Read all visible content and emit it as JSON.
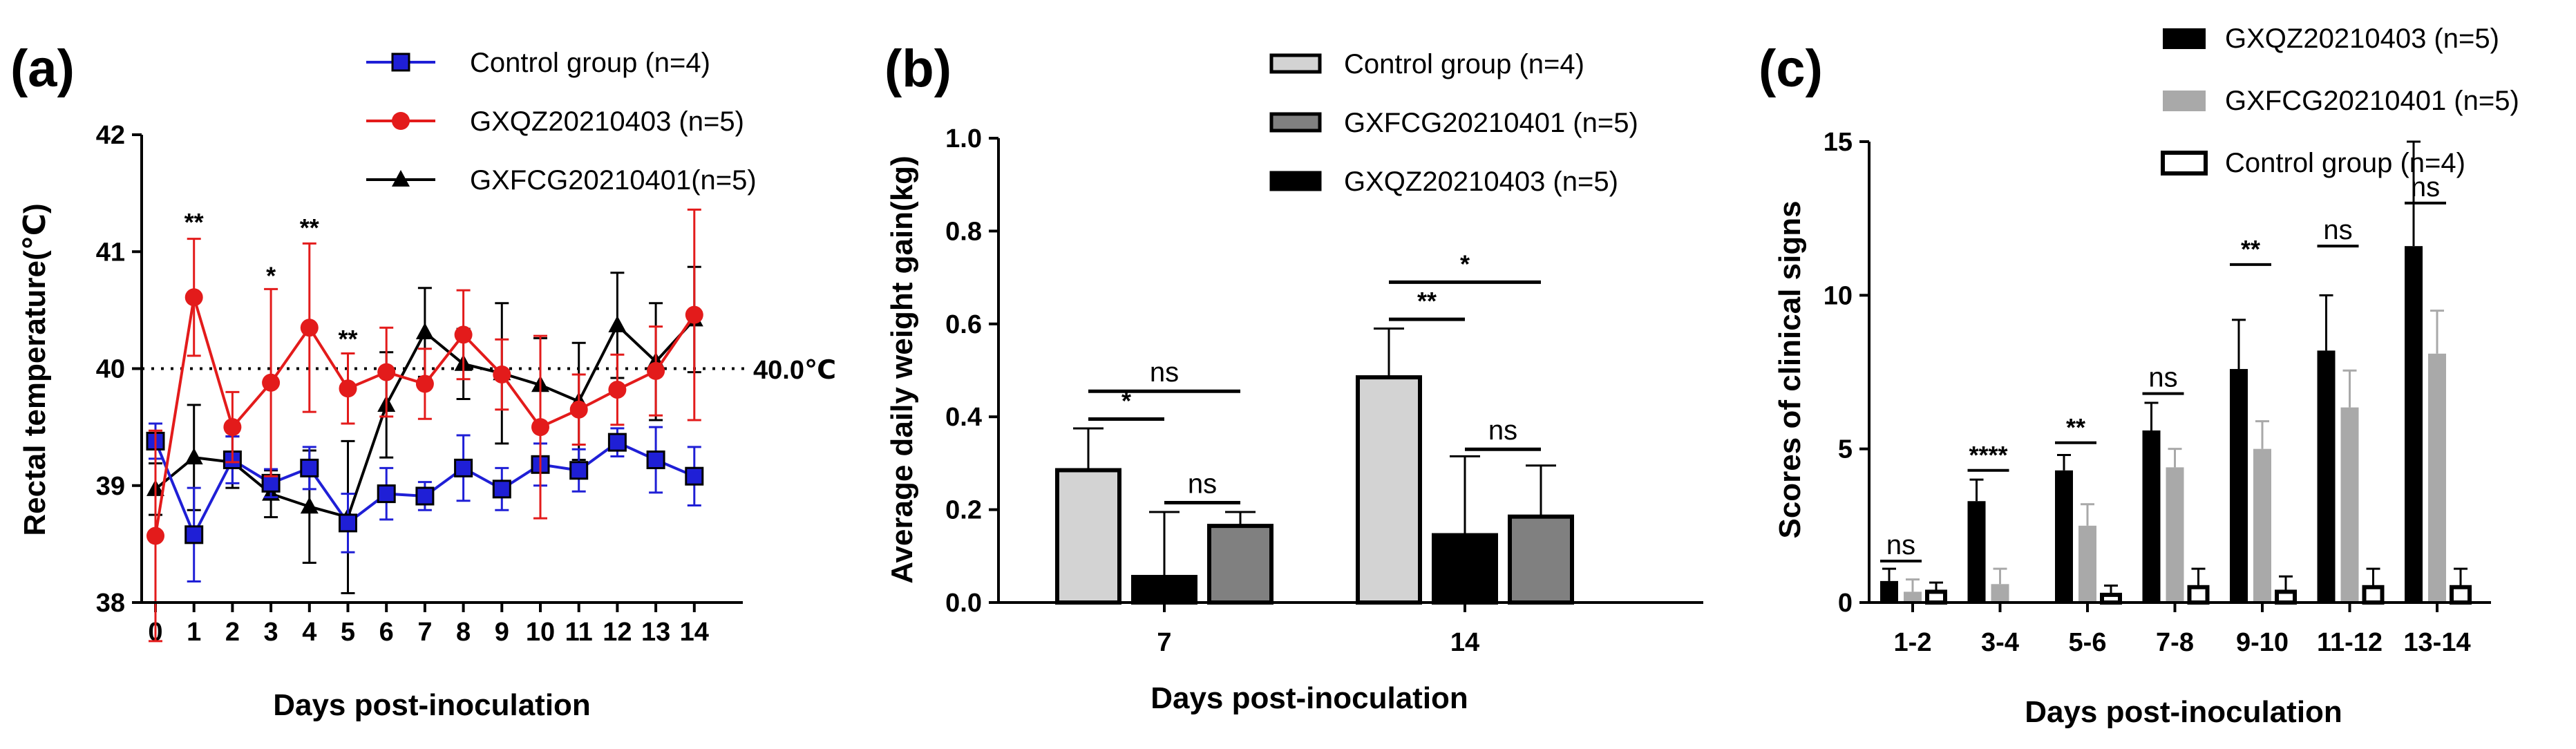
{
  "chart_data": [
    {
      "panel": "(a)",
      "type": "line",
      "xlabel": "Days post-inoculation",
      "ylabel": "Rectal temperature(℃)",
      "x": [
        0,
        1,
        2,
        3,
        4,
        5,
        6,
        7,
        8,
        9,
        10,
        11,
        12,
        13,
        14
      ],
      "ylim": [
        38,
        42
      ],
      "yticks": [
        38,
        39,
        40,
        41,
        42
      ],
      "reference_line": {
        "y": 40.0,
        "label": "40.0℃"
      },
      "series": [
        {
          "name": "Control group (n=4)",
          "color": "#1f1fd6",
          "marker": "square",
          "values": [
            39.38,
            38.58,
            39.22,
            39.02,
            39.15,
            38.68,
            38.93,
            38.91,
            39.15,
            38.97,
            39.18,
            39.13,
            39.37,
            39.22,
            39.08
          ],
          "errors": [
            0.15,
            0.4,
            0.2,
            0.12,
            0.18,
            0.25,
            0.22,
            0.12,
            0.28,
            0.18,
            0.18,
            0.18,
            0.12,
            0.28,
            0.25
          ]
        },
        {
          "name": "GXQZ20210403 (n=5)",
          "color": "#e31b1b",
          "marker": "circle",
          "values": [
            38.57,
            40.61,
            39.5,
            39.88,
            40.35,
            39.83,
            39.97,
            39.87,
            40.29,
            39.95,
            39.5,
            39.65,
            39.82,
            39.98,
            40.46
          ],
          "errors": [
            0.9,
            0.5,
            0.3,
            0.8,
            0.72,
            0.3,
            0.38,
            0.3,
            0.38,
            0.3,
            0.78,
            0.3,
            0.3,
            0.38,
            0.9
          ]
        },
        {
          "name": "GXFCG20210401(n=5)",
          "color": "#000000",
          "marker": "triangle",
          "values": [
            38.97,
            39.24,
            39.2,
            38.93,
            38.82,
            38.73,
            39.69,
            40.31,
            40.04,
            39.96,
            39.86,
            39.72,
            40.37,
            40.06,
            40.42
          ],
          "errors": [
            0.22,
            0.45,
            0.22,
            0.2,
            0.48,
            0.65,
            0.45,
            0.38,
            0.3,
            0.6,
            0.4,
            0.5,
            0.45,
            0.5,
            0.45
          ]
        }
      ],
      "annotations": [
        {
          "x": 1,
          "y": 41.18,
          "text": "**"
        },
        {
          "x": 3,
          "y": 40.72,
          "text": "*"
        },
        {
          "x": 4,
          "y": 41.13,
          "text": "**"
        },
        {
          "x": 5,
          "y": 40.18,
          "text": "**"
        }
      ]
    },
    {
      "panel": "(b)",
      "type": "bar",
      "xlabel": "Days post-inoculation",
      "ylabel": "Average daily weight gain(kg)",
      "categories": [
        "7",
        "14"
      ],
      "ylim": [
        0,
        1.0
      ],
      "yticks": [
        0.0,
        0.2,
        0.4,
        0.6,
        0.8,
        1.0
      ],
      "series": [
        {
          "name": "Control group (n=4)",
          "color": "#d3d3d3",
          "values": [
            0.285,
            0.485
          ],
          "errors": [
            0.09,
            0.105
          ]
        },
        {
          "name": "GXQZ20210403 (n=5)",
          "color": "#000000",
          "values": [
            0.055,
            0.145
          ],
          "errors": [
            0.14,
            0.17
          ]
        },
        {
          "name": "GXFCG20210401 (n=5)",
          "color": "#808080",
          "values": [
            0.165,
            0.185
          ],
          "errors": [
            0.03,
            0.11
          ]
        }
      ],
      "legend_order": [
        "Control group (n=4)",
        "GXFCG20210401 (n=5)",
        "GXQZ20210403 (n=5)"
      ],
      "significance": [
        {
          "category": "7",
          "from": 0,
          "to": 2,
          "y": 0.455,
          "label": "ns"
        },
        {
          "category": "7",
          "from": 0,
          "to": 1,
          "y": 0.395,
          "label": "*"
        },
        {
          "category": "7",
          "from": 1,
          "to": 2,
          "y": 0.215,
          "label": "ns"
        },
        {
          "category": "14",
          "from": 0,
          "to": 2,
          "y": 0.69,
          "label": "*"
        },
        {
          "category": "14",
          "from": 0,
          "to": 1,
          "y": 0.61,
          "label": "**"
        },
        {
          "category": "14",
          "from": 1,
          "to": 2,
          "y": 0.33,
          "label": "ns"
        }
      ]
    },
    {
      "panel": "(c)",
      "type": "bar",
      "xlabel": "Days post-inoculation",
      "ylabel": "Scores of clinical signs",
      "categories": [
        "1-2",
        "3-4",
        "5-6",
        "7-8",
        "9-10",
        "11-12",
        "13-14"
      ],
      "ylim": [
        0,
        15
      ],
      "yticks": [
        0,
        5,
        10,
        15
      ],
      "series": [
        {
          "name": "GXQZ20210403 (n=5)",
          "color": "#000000",
          "values": [
            0.7,
            3.3,
            4.3,
            5.6,
            7.6,
            8.2,
            11.6
          ],
          "errors": [
            0.4,
            0.7,
            0.5,
            0.9,
            1.6,
            1.8,
            3.4
          ]
        },
        {
          "name": "GXFCG20210401 (n=5)",
          "color": "#a9a9a9",
          "values": [
            0.35,
            0.6,
            2.5,
            4.4,
            5.0,
            6.35,
            8.1
          ],
          "errors": [
            0.4,
            0.5,
            0.7,
            0.6,
            0.9,
            1.2,
            1.4
          ]
        },
        {
          "name": "Control group (n=4)",
          "color": "#ffffff",
          "values": [
            0.35,
            0.0,
            0.25,
            0.5,
            0.35,
            0.5,
            0.5
          ],
          "errors": [
            0.3,
            0.0,
            0.3,
            0.6,
            0.5,
            0.6,
            0.6
          ]
        }
      ],
      "significance": [
        {
          "category": "1-2",
          "y": 1.35,
          "label": "ns"
        },
        {
          "category": "3-4",
          "y": 4.3,
          "label": "****"
        },
        {
          "category": "5-6",
          "y": 5.2,
          "label": "**"
        },
        {
          "category": "7-8",
          "y": 6.8,
          "label": "ns"
        },
        {
          "category": "9-10",
          "y": 11.0,
          "label": "**"
        },
        {
          "category": "11-12",
          "y": 11.6,
          "label": "ns"
        },
        {
          "category": "13-14",
          "y": 13.0,
          "label": "ns"
        }
      ]
    }
  ]
}
